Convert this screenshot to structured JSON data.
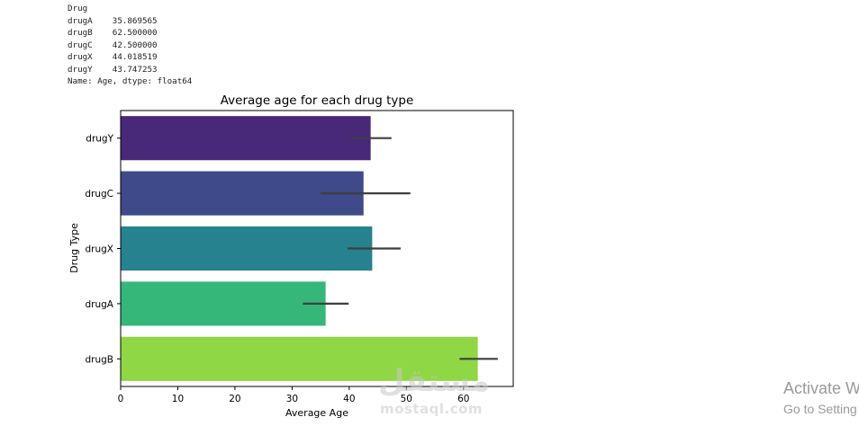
{
  "output": {
    "header": "Drug",
    "rows": [
      {
        "name": "drugA",
        "value": "35.869565"
      },
      {
        "name": "drugB",
        "value": "62.500000"
      },
      {
        "name": "drugC",
        "value": "42.500000"
      },
      {
        "name": "drugX",
        "value": "44.018519"
      },
      {
        "name": "drugY",
        "value": "43.747253"
      }
    ],
    "footer": "Name: Age, dtype: float64"
  },
  "chart_data": {
    "type": "bar",
    "orientation": "horizontal",
    "title": "Average age for each drug type",
    "xlabel": "Average Age",
    "ylabel": "Drug Type",
    "xlim": [
      0,
      68.7
    ],
    "xticks": [
      0,
      10,
      20,
      30,
      40,
      50,
      60
    ],
    "categories": [
      "drugY",
      "drugC",
      "drugX",
      "drugA",
      "drugB"
    ],
    "values": [
      43.75,
      42.5,
      44.02,
      35.87,
      62.5
    ],
    "error_low": [
      40.2,
      35.0,
      39.7,
      31.9,
      59.3
    ],
    "error_high": [
      47.4,
      50.7,
      49.0,
      39.9,
      66.0
    ],
    "colors": [
      "#482878",
      "#3e4a89",
      "#26828e",
      "#35b779",
      "#8fd744"
    ],
    "grid": false,
    "errorbar_color": "#3f3f3f"
  },
  "watermark": {
    "arabic": "مستقل",
    "latin": "mostaql.com"
  },
  "activation": {
    "line1": "Activate W",
    "line2": "Go to Setting"
  }
}
